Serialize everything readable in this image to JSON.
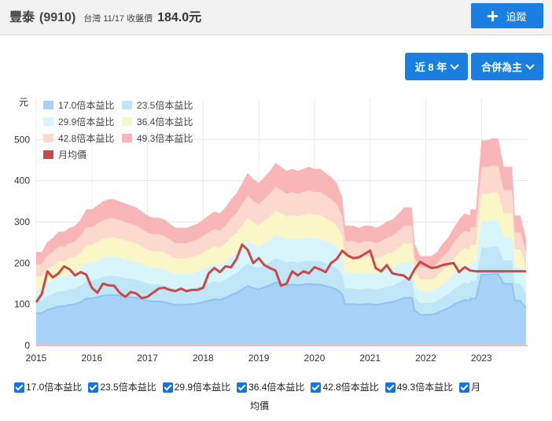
{
  "header": {
    "stock_name": "豐泰",
    "stock_code": "(9910)",
    "market_info": "台灣 11/17 收盤價",
    "price": "184.0元",
    "add_button_label": "追蹤"
  },
  "controls": {
    "years_label": "近 8 年",
    "basis_label": "合併為主"
  },
  "legend_items": [
    {
      "label": "17.0倍本益比",
      "color": "#a8d1f7"
    },
    {
      "label": "23.5倍本益比",
      "color": "#bfe6f7"
    },
    {
      "label": "29.9倍本益比",
      "color": "#d7f5fb"
    },
    {
      "label": "36.4倍本益比",
      "color": "#fbf6c8"
    },
    {
      "label": "42.8倍本益比",
      "color": "#fbd9cd"
    },
    {
      "label": "49.3倍本益比",
      "color": "#f8b6b8"
    },
    {
      "label": "月均價",
      "color": "#c9484a"
    }
  ],
  "bottom_legend": {
    "items": [
      "17.0倍本益比",
      "23.5倍本益比",
      "29.9倍本益比",
      "36.4倍本益比",
      "42.8倍本益比",
      "49.3倍本益比",
      "月"
    ],
    "continuation": "均價"
  },
  "chart_data": {
    "type": "area",
    "ylabel": "元",
    "ylim": [
      0,
      600
    ],
    "yticks": [
      0,
      100,
      200,
      300,
      400,
      500
    ],
    "xlim": [
      2015,
      2023.83
    ],
    "xticks": [
      "2015",
      "2016",
      "2017",
      "2018",
      "2019",
      "2020",
      "2021",
      "2022",
      "2023"
    ],
    "pe_multiples": [
      17.0,
      23.5,
      29.9,
      36.4,
      42.8,
      49.3
    ],
    "eps_x": [
      2015.0,
      2015.1,
      2015.2,
      2015.3,
      2015.4,
      2015.5,
      2015.6,
      2015.7,
      2015.8,
      2015.9,
      2016.0,
      2016.1,
      2016.2,
      2016.3,
      2016.4,
      2016.5,
      2016.6,
      2016.7,
      2016.8,
      2016.9,
      2017.0,
      2017.1,
      2017.2,
      2017.3,
      2017.4,
      2017.5,
      2017.6,
      2017.7,
      2017.8,
      2017.9,
      2018.0,
      2018.1,
      2018.2,
      2018.3,
      2018.4,
      2018.5,
      2018.6,
      2018.7,
      2018.8,
      2018.9,
      2019.0,
      2019.1,
      2019.2,
      2019.3,
      2019.4,
      2019.5,
      2019.6,
      2019.7,
      2019.8,
      2019.9,
      2020.0,
      2020.1,
      2020.2,
      2020.3,
      2020.4,
      2020.5,
      2020.55,
      2020.7,
      2020.8,
      2020.9,
      2021.0,
      2021.1,
      2021.2,
      2021.3,
      2021.4,
      2021.55,
      2021.6,
      2021.75,
      2021.8,
      2021.9,
      2022.0,
      2022.1,
      2022.2,
      2022.3,
      2022.4,
      2022.5,
      2022.6,
      2022.7,
      2022.8,
      2022.8,
      2022.9,
      2023.0,
      2023.1,
      2023.2,
      2023.3,
      2023.4,
      2023.55,
      2023.6,
      2023.7,
      2023.8
    ],
    "eps": [
      4.6,
      4.6,
      5.1,
      5.3,
      5.6,
      5.6,
      5.8,
      5.9,
      6.2,
      6.7,
      6.7,
      6.9,
      7.1,
      7.2,
      7.2,
      7.1,
      7.0,
      6.9,
      6.8,
      6.6,
      6.4,
      6.3,
      6.3,
      6.2,
      6.0,
      5.8,
      5.8,
      5.8,
      5.9,
      6.0,
      6.2,
      6.4,
      6.6,
      6.5,
      6.8,
      7.2,
      7.5,
      8.0,
      8.5,
      8.2,
      8.0,
      8.3,
      8.6,
      9.0,
      8.8,
      8.6,
      8.7,
      8.6,
      8.7,
      8.8,
      8.7,
      8.7,
      8.5,
      8.3,
      8.0,
      7.3,
      5.9,
      5.9,
      5.8,
      5.9,
      5.9,
      5.8,
      5.9,
      6.1,
      6.2,
      6.6,
      6.8,
      6.8,
      5.0,
      4.4,
      4.4,
      4.4,
      4.6,
      5.0,
      5.3,
      5.8,
      6.2,
      6.5,
      6.4,
      6.7,
      6.7,
      10.1,
      10.1,
      10.2,
      10.2,
      8.8,
      8.8,
      6.4,
      6.4,
      5.3
    ],
    "series": [
      {
        "name": "月均價",
        "x": [
          2015.0,
          2015.1,
          2015.2,
          2015.3,
          2015.4,
          2015.5,
          2015.6,
          2015.7,
          2015.8,
          2015.9,
          2016.0,
          2016.1,
          2016.2,
          2016.3,
          2016.4,
          2016.5,
          2016.6,
          2016.7,
          2016.8,
          2016.9,
          2017.0,
          2017.1,
          2017.2,
          2017.3,
          2017.4,
          2017.5,
          2017.6,
          2017.7,
          2017.8,
          2017.9,
          2018.0,
          2018.1,
          2018.2,
          2018.3,
          2018.4,
          2018.5,
          2018.6,
          2018.7,
          2018.8,
          2018.9,
          2019.0,
          2019.1,
          2019.2,
          2019.3,
          2019.4,
          2019.5,
          2019.6,
          2019.7,
          2019.8,
          2019.9,
          2020.0,
          2020.1,
          2020.2,
          2020.3,
          2020.4,
          2020.5,
          2020.6,
          2020.7,
          2020.8,
          2020.9,
          2021.0,
          2021.1,
          2021.2,
          2021.3,
          2021.4,
          2021.5,
          2021.6,
          2021.7,
          2021.8,
          2021.9,
          2022.0,
          2022.1,
          2022.2,
          2022.3,
          2022.4,
          2022.5,
          2022.6,
          2022.7,
          2022.8,
          2022.9,
          2023.0,
          2023.1,
          2023.2,
          2023.3,
          2023.4,
          2023.5,
          2023.6,
          2023.7,
          2023.8
        ],
        "values": [
          105,
          125,
          180,
          165,
          175,
          192,
          185,
          170,
          178,
          172,
          140,
          128,
          150,
          146,
          145,
          128,
          118,
          130,
          126,
          115,
          118,
          128,
          138,
          140,
          135,
          132,
          138,
          132,
          135,
          135,
          140,
          175,
          188,
          178,
          192,
          190,
          210,
          245,
          232,
          200,
          212,
          195,
          188,
          182,
          145,
          150,
          180,
          170,
          180,
          175,
          190,
          185,
          178,
          200,
          210,
          230,
          218,
          212,
          214,
          222,
          230,
          188,
          180,
          195,
          175,
          172,
          170,
          160,
          185,
          203,
          195,
          188,
          190,
          195,
          198,
          200,
          178,
          190,
          182,
          180,
          180,
          180,
          180,
          180,
          180,
          180,
          180,
          180,
          180
        ]
      }
    ]
  }
}
